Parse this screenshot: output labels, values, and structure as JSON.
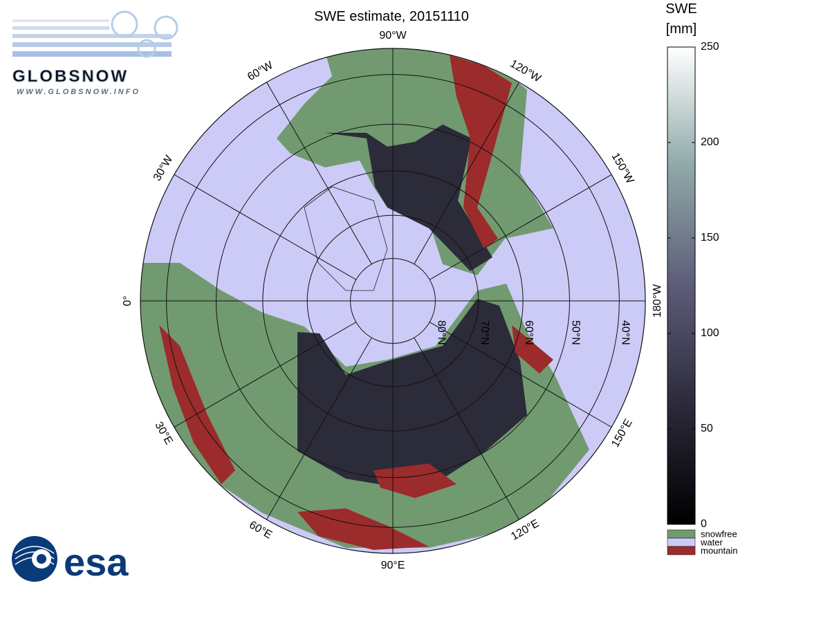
{
  "title": "SWE estimate, 20151110",
  "logo": {
    "name": "GLOBSNOW",
    "url": "WWW.GLOBSNOW.INFO"
  },
  "agency": "esa",
  "map": {
    "longitudes": [
      {
        "lon": -90,
        "label": "90°W"
      },
      {
        "lon": -120,
        "label": "120°W"
      },
      {
        "lon": -150,
        "label": "150°W"
      },
      {
        "lon": 180,
        "label": "180°W"
      },
      {
        "lon": 150,
        "label": "150°E"
      },
      {
        "lon": 120,
        "label": "120°E"
      },
      {
        "lon": 90,
        "label": "90°E"
      },
      {
        "lon": 60,
        "label": "60°E"
      },
      {
        "lon": 30,
        "label": "30°E"
      },
      {
        "lon": 0,
        "label": "0°"
      },
      {
        "lon": -30,
        "label": "30°W"
      },
      {
        "lon": -60,
        "label": "60°W"
      }
    ],
    "latitudes": [
      {
        "lat": 80,
        "label": "80°N"
      },
      {
        "lat": 70,
        "label": "70°N"
      },
      {
        "lat": 60,
        "label": "60°N"
      },
      {
        "lat": 50,
        "label": "50°N"
      },
      {
        "lat": 40,
        "label": "40°N"
      }
    ]
  },
  "colorbar": {
    "title": "SWE",
    "unit": "[mm]",
    "lim": [
      0,
      250
    ],
    "ticks": [
      0,
      50,
      100,
      150,
      200,
      250
    ],
    "legend": [
      {
        "name": "snowfree",
        "color": "#729a71"
      },
      {
        "name": "water",
        "color": "#cccbf7"
      },
      {
        "name": "mountain",
        "color": "#9c2b2b"
      }
    ]
  }
}
